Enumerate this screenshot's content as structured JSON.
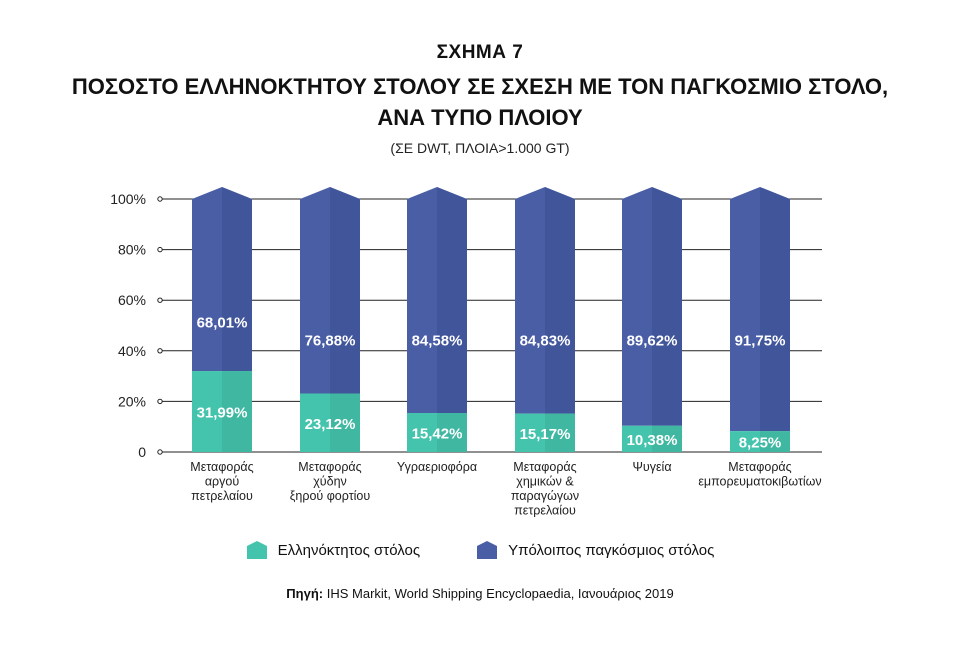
{
  "header": {
    "figure_number": "ΣΧΗΜΑ 7",
    "title_line1": "ΠΟΣΟΣΤΟ ΕΛΛΗΝΟΚΤΗΤΟΥ ΣΤΟΛΟΥ ΣΕ ΣΧΕΣΗ ΜΕ ΤΟΝ ΠΑΓΚΟΣΜΙΟ ΣΤΟΛΟ,",
    "title_line2": "ΑΝΑ ΤΥΠΟ ΠΛΟΙΟΥ",
    "subtitle": "(ΣΕ DWT, ΠΛΟΙΑ>1.000 GT)"
  },
  "footer": {
    "source_label": "Πηγή:",
    "source_text": " IHS Markit, World Shipping Encyclopaedia, Ιανουάριος 2019"
  },
  "colors": {
    "greek_fleet": "#45c4ad",
    "greek_fleet_dark": "#37a893",
    "rest_fleet": "#4a5ea6",
    "rest_fleet_dark": "#3b4e91",
    "grid": "#222222"
  },
  "chart_data": {
    "type": "bar",
    "stacked": true,
    "categories": [
      [
        "Μεταφοράς",
        "αργού",
        "πετρελαίου"
      ],
      [
        "Μεταφοράς",
        "χύδην",
        "ξηρού φορτίου"
      ],
      [
        "Υγραεριοφόρα"
      ],
      [
        "Μεταφοράς",
        "χημικών &",
        "παραγώγων",
        "πετρελαίου"
      ],
      [
        "Ψυγεία"
      ],
      [
        "Μεταφοράς",
        "εμπορευματοκιβωτίων"
      ]
    ],
    "series": [
      {
        "name": "Ελληνόκτητος στόλος",
        "values": [
          31.99,
          23.12,
          15.42,
          15.17,
          10.38,
          8.25
        ],
        "labels": [
          "31,99%",
          "23,12%",
          "15,42%",
          "15,17%",
          "10,38%",
          "8,25%"
        ]
      },
      {
        "name": "Υπόλοιπος παγκόσμιος στόλος",
        "values": [
          68.01,
          76.88,
          84.58,
          84.83,
          89.62,
          91.75
        ],
        "labels": [
          "68,01%",
          "76,88%",
          "84,58%",
          "84,83%",
          "89,62%",
          "91,75%"
        ]
      }
    ],
    "ylim": [
      0,
      100
    ],
    "yticks": [
      0,
      20,
      40,
      60,
      80,
      100
    ],
    "ytick_labels": [
      "0",
      "20%",
      "40%",
      "60%",
      "80%",
      "100%"
    ],
    "grid": true,
    "legend_position": "bottom"
  }
}
